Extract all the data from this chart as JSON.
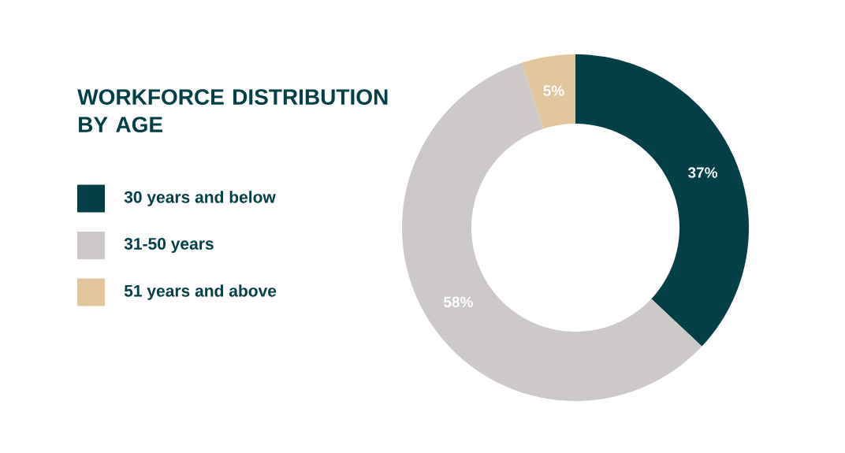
{
  "chart_data": {
    "type": "donut",
    "title": "WORKFORCE DISTRIBUTION BY AGE",
    "categories": [
      "30 years and below",
      "31-50 years",
      "51 years and above"
    ],
    "values": [
      37,
      58,
      5
    ],
    "colors": [
      "#023f46",
      "#cbc8c7",
      "#e2c599"
    ],
    "value_labels": [
      "37%",
      "58%",
      "5%"
    ],
    "legend": "left"
  }
}
